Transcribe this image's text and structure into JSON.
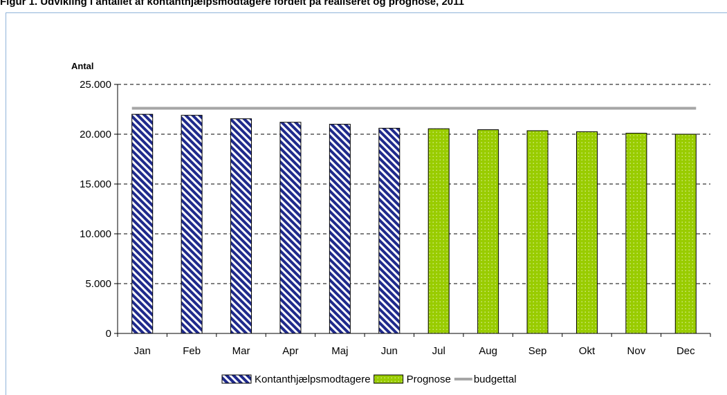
{
  "title": "Figur 1. Udvikling i antallet af kontanthjælpsmodtagere fordelt på realiseret og prognose, 2011",
  "chart_data": {
    "type": "bar",
    "ylabel": "Antal",
    "ylim": [
      0,
      25000
    ],
    "yticks": [
      "0",
      "5.000",
      "10.000",
      "15.000",
      "20.000",
      "25.000"
    ],
    "ytick_values": [
      0,
      5000,
      10000,
      15000,
      20000,
      25000
    ],
    "grid": true,
    "legend": "bottom",
    "categories": [
      "Jan",
      "Feb",
      "Mar",
      "Apr",
      "Maj",
      "Jun",
      "Jul",
      "Aug",
      "Sep",
      "Okt",
      "Nov",
      "Dec"
    ],
    "series": [
      {
        "name": "Kontanthjælpsmodtagere",
        "kind": "bar",
        "color": "#1f2a8c",
        "values": [
          22000,
          21900,
          21550,
          21200,
          21000,
          20600,
          null,
          null,
          null,
          null,
          null,
          null
        ]
      },
      {
        "name": "Prognose",
        "kind": "bar",
        "color": "#99cc00",
        "values": [
          null,
          null,
          null,
          null,
          null,
          null,
          20550,
          20450,
          20350,
          20250,
          20100,
          20000
        ]
      },
      {
        "name": "budgettal",
        "kind": "line",
        "color": "#a6a6a6",
        "values": [
          22600,
          22600,
          22600,
          22600,
          22600,
          22600,
          22600,
          22600,
          22600,
          22600,
          22600,
          22600
        ]
      }
    ]
  }
}
